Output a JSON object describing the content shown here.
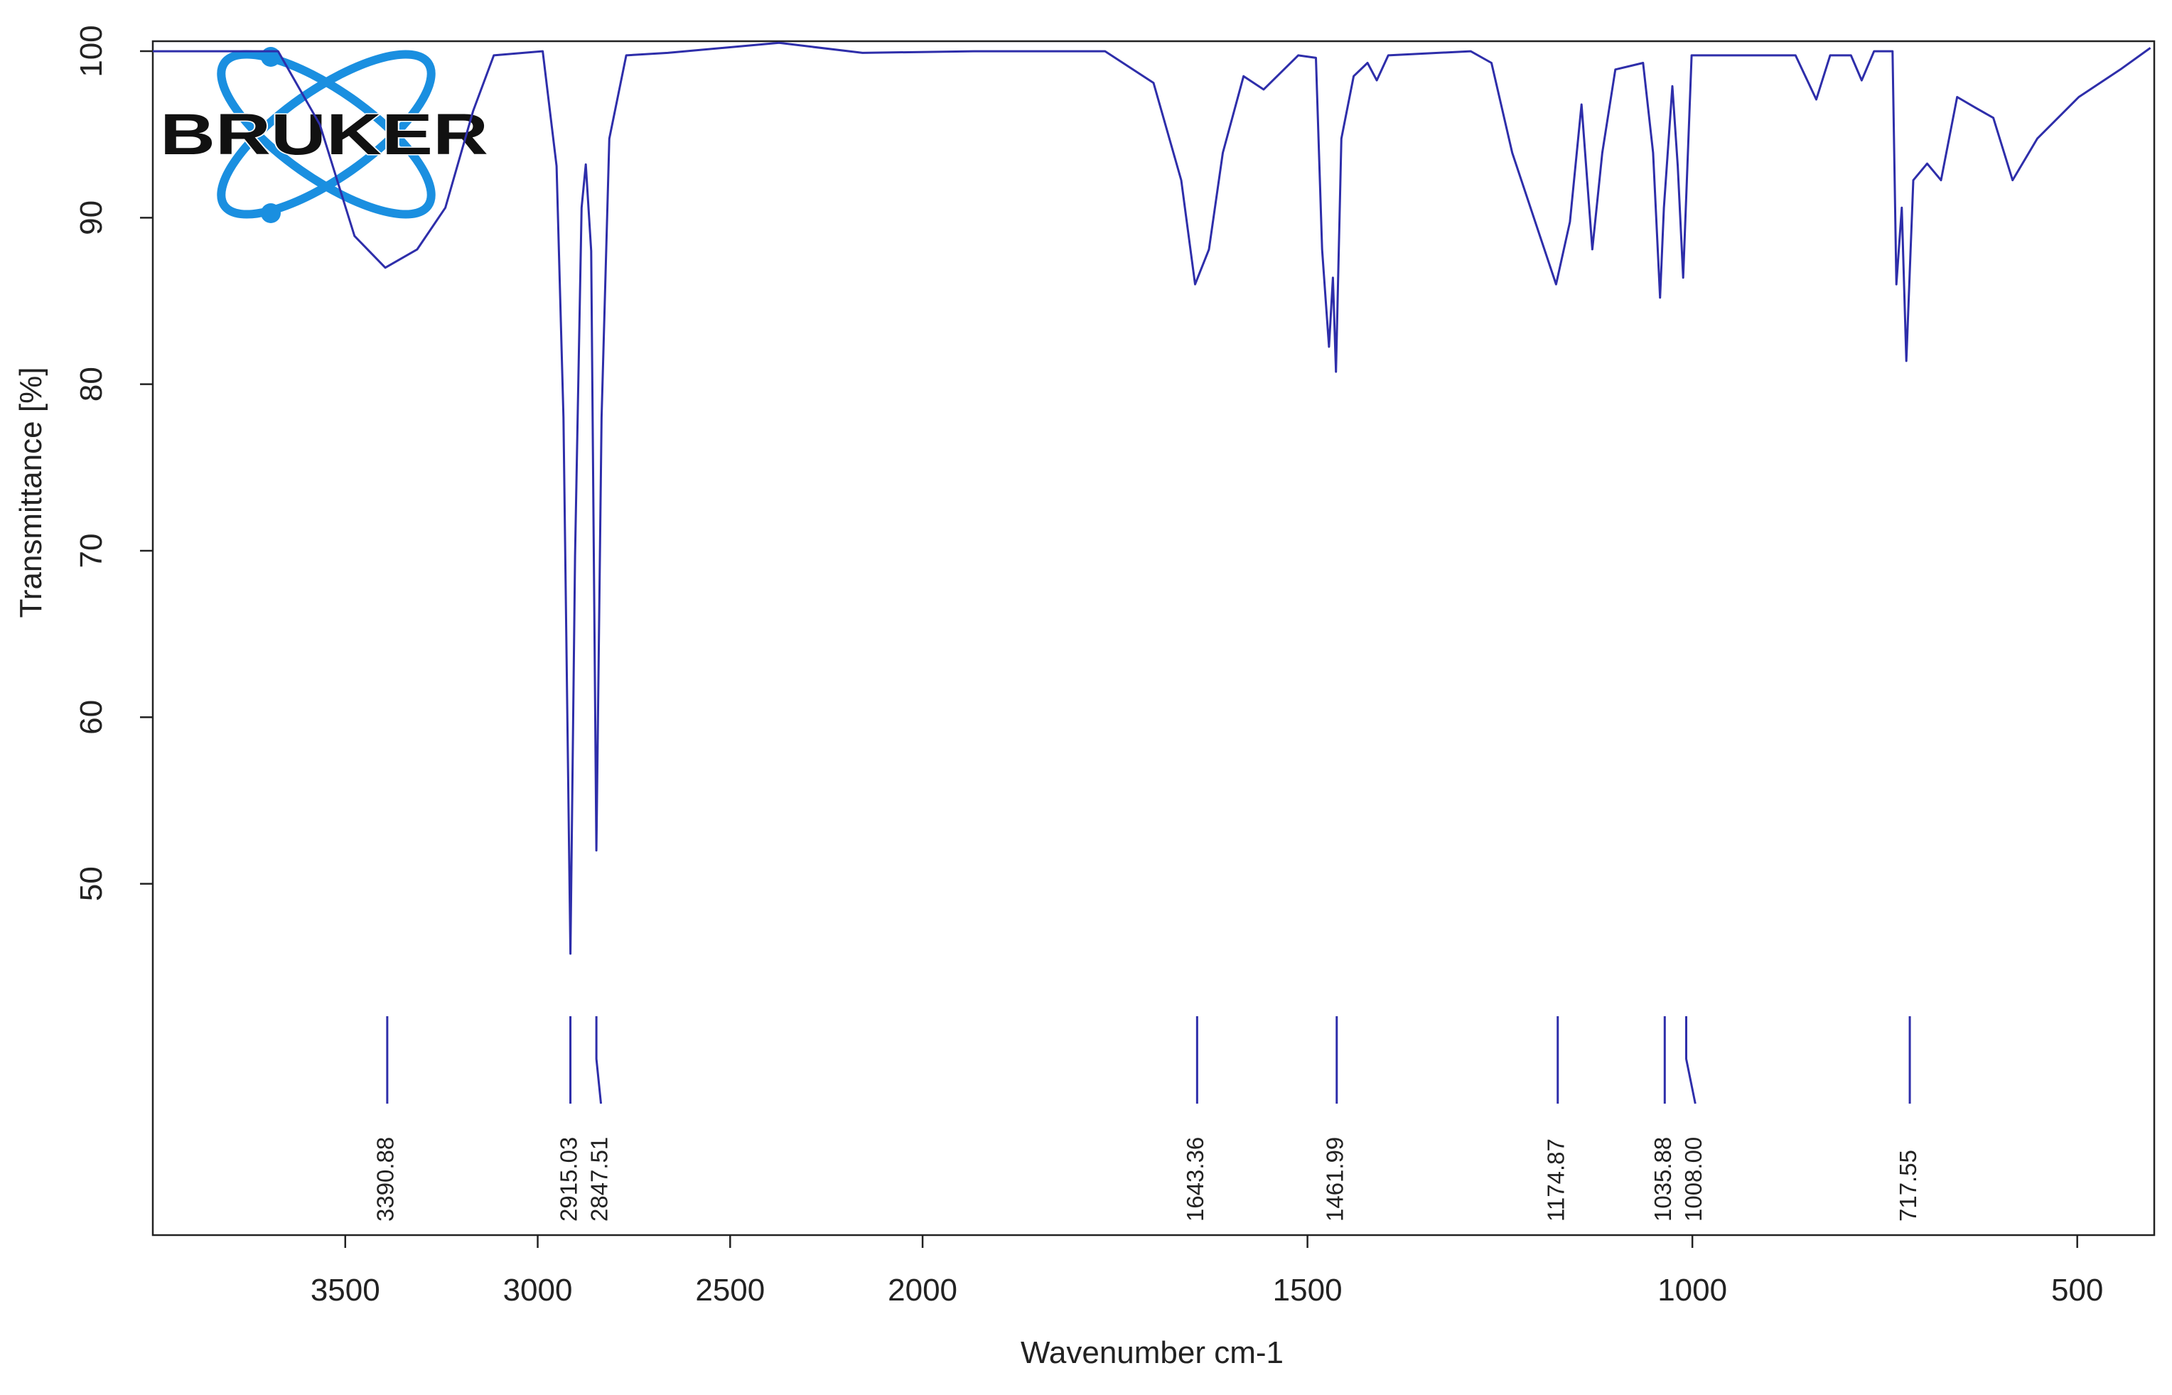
{
  "chart_data": {
    "type": "line",
    "logo": "BRUKER",
    "xlabel": "Wavenumber cm-1",
    "ylabel": "Transmittance [%]",
    "color": "#2e2eaa",
    "xlim": [
      4000,
      400
    ],
    "xscale": {
      "break": 2000,
      "compress": 2
    },
    "xticks": [
      3500,
      3000,
      2500,
      2000,
      1500,
      1000,
      500
    ],
    "ylim": [
      28.9,
      100.6
    ],
    "yticks": [
      50,
      60,
      70,
      80,
      90,
      100
    ],
    "x": [
      4000,
      3674.5,
      3566,
      3476,
      3396,
      3313,
      3240,
      3168,
      3114,
      2987,
      2951,
      2933,
      2915,
      2903,
      2886,
      2875,
      2861,
      2847.5,
      2834,
      2814,
      2770,
      2662,
      2373,
      2156,
      1933.6,
      1763,
      1700,
      1664,
      1646,
      1628,
      1610,
      1583,
      1557,
      1512,
      1489,
      1481,
      1472,
      1467,
      1463,
      1456,
      1440,
      1422,
      1410,
      1395,
      1288,
      1261,
      1234,
      1198,
      1177,
      1159,
      1144,
      1130,
      1117,
      1100,
      1064,
      1051,
      1042,
      1037,
      1026,
      1019,
      1012,
      1001,
      866,
      839,
      821,
      794,
      780,
      764,
      740,
      735,
      728,
      722,
      713,
      695,
      677,
      656,
      632,
      609,
      584,
      552,
      498,
      444,
      405
    ],
    "values": [
      100,
      100,
      95.6,
      88.9,
      87.0,
      88.1,
      90.6,
      96.4,
      99.75,
      100,
      93.1,
      78,
      45.8,
      69.7,
      90.6,
      93.2,
      88,
      52,
      78,
      94.75,
      99.75,
      99.9,
      100.5,
      99.9,
      100,
      100,
      98.1,
      92.25,
      86,
      88.1,
      93.9,
      98.5,
      97.7,
      99.75,
      99.6,
      88.1,
      82.25,
      86.4,
      80.75,
      94.75,
      98.5,
      99.3,
      98.25,
      99.75,
      100,
      99.3,
      93.9,
      88.9,
      86,
      89.75,
      96.8,
      88.1,
      93.9,
      98.9,
      99.3,
      93.9,
      85.2,
      90.6,
      97.9,
      93.1,
      86.4,
      99.75,
      99.75,
      97.1,
      99.75,
      99.75,
      98.25,
      100,
      100,
      86,
      90.6,
      81.4,
      92.25,
      93.25,
      92.25,
      97.25,
      96.6,
      96,
      92.25,
      94.75,
      97.25,
      98.9,
      100.2
    ],
    "peaks": [
      3390.88,
      2915.03,
      2847.51,
      1643.36,
      1461.99,
      1174.87,
      1035.88,
      {
        "value": 1008,
        "label": "1008.00"
      },
      717.55
    ]
  }
}
